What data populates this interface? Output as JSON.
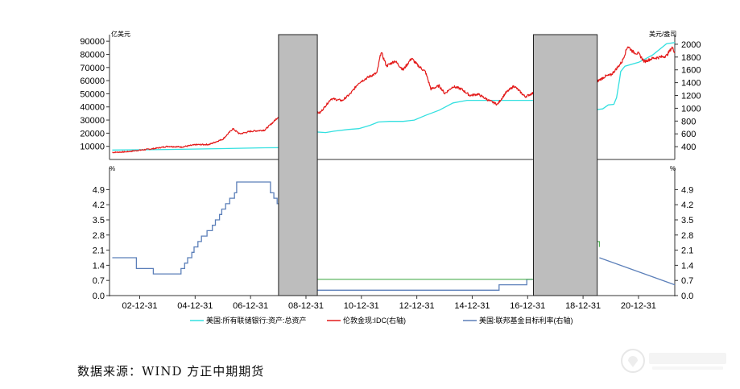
{
  "chart_data": {
    "type": "line",
    "x_ticks": [
      "02-12-31",
      "04-12-31",
      "06-12-31",
      "08-12-31",
      "10-12-31",
      "12-12-31",
      "14-12-31",
      "16-12-31",
      "18-12-31",
      "20-12-31"
    ],
    "top_panel": {
      "left_unit": "亿美元",
      "right_unit": "美元/盎司",
      "left_ticks": [
        "90000",
        "80000",
        "70000",
        "60000",
        "50000",
        "40000",
        "30000",
        "20000",
        "10000"
      ],
      "right_ticks": [
        "2000",
        "1800",
        "1600",
        "1400",
        "1200",
        "1000",
        "800",
        "600",
        "400"
      ],
      "ylim_left": [
        0,
        95000
      ],
      "ylim_right": [
        200,
        2150
      ],
      "series": [
        {
          "name": "美国:所有联储银行:资产:总资产",
          "axis": "left",
          "color": "#33e0e0",
          "points": [
            [
              2002.0,
              7200
            ],
            [
              2004.0,
              7600
            ],
            [
              2006.0,
              8300
            ],
            [
              2007.5,
              8900
            ],
            [
              2008.7,
              9100
            ],
            [
              2008.75,
              12500
            ],
            [
              2008.85,
              17500
            ],
            [
              2008.95,
              22000
            ],
            [
              2009.3,
              21000
            ],
            [
              2009.7,
              20500
            ],
            [
              2010.0,
              21500
            ],
            [
              2010.5,
              22800
            ],
            [
              2010.9,
              23500
            ],
            [
              2011.3,
              26000
            ],
            [
              2011.6,
              28500
            ],
            [
              2012.0,
              29000
            ],
            [
              2012.5,
              29000
            ],
            [
              2012.9,
              30000
            ],
            [
              2013.3,
              33500
            ],
            [
              2013.8,
              37500
            ],
            [
              2014.3,
              43000
            ],
            [
              2014.8,
              45000
            ],
            [
              2015.5,
              45000
            ],
            [
              2016.5,
              45000
            ],
            [
              2017.5,
              45000
            ],
            [
              2017.9,
              44500
            ],
            [
              2018.5,
              43000
            ],
            [
              2019.0,
              40500
            ],
            [
              2019.5,
              38000
            ],
            [
              2019.7,
              38500
            ],
            [
              2019.9,
              41500
            ],
            [
              2020.1,
              42000
            ],
            [
              2020.2,
              47000
            ],
            [
              2020.3,
              60000
            ],
            [
              2020.35,
              67000
            ],
            [
              2020.5,
              71000
            ],
            [
              2021.0,
              74000
            ],
            [
              2021.5,
              79500
            ],
            [
              2022.0,
              88000
            ],
            [
              2022.3,
              89000
            ]
          ]
        },
        {
          "name": "伦敦金现:IDC(右轴)",
          "axis": "right",
          "color": "#e31a1a",
          "points": [
            [
              2002.0,
              310
            ],
            [
              2002.5,
              320
            ],
            [
              2003.0,
              345
            ],
            [
              2003.5,
              370
            ],
            [
              2004.0,
              405
            ],
            [
              2004.5,
              395
            ],
            [
              2005.0,
              430
            ],
            [
              2005.5,
              435
            ],
            [
              2006.0,
              520
            ],
            [
              2006.35,
              680
            ],
            [
              2006.6,
              600
            ],
            [
              2007.0,
              640
            ],
            [
              2007.5,
              660
            ],
            [
              2007.8,
              780
            ],
            [
              2008.2,
              960
            ],
            [
              2008.4,
              880
            ],
            [
              2008.6,
              900
            ],
            [
              2008.8,
              720
            ],
            [
              2009.1,
              930
            ],
            [
              2009.5,
              930
            ],
            [
              2009.9,
              1150
            ],
            [
              2010.3,
              1120
            ],
            [
              2010.6,
              1230
            ],
            [
              2010.9,
              1400
            ],
            [
              2011.3,
              1500
            ],
            [
              2011.55,
              1550
            ],
            [
              2011.7,
              1880
            ],
            [
              2011.9,
              1660
            ],
            [
              2012.2,
              1740
            ],
            [
              2012.5,
              1600
            ],
            [
              2012.8,
              1780
            ],
            [
              2013.0,
              1680
            ],
            [
              2013.3,
              1570
            ],
            [
              2013.5,
              1300
            ],
            [
              2013.8,
              1350
            ],
            [
              2014.0,
              1230
            ],
            [
              2014.3,
              1340
            ],
            [
              2014.6,
              1300
            ],
            [
              2014.9,
              1200
            ],
            [
              2015.2,
              1220
            ],
            [
              2015.6,
              1120
            ],
            [
              2015.9,
              1060
            ],
            [
              2016.2,
              1240
            ],
            [
              2016.5,
              1350
            ],
            [
              2016.9,
              1180
            ],
            [
              2017.3,
              1260
            ],
            [
              2017.7,
              1290
            ],
            [
              2018.0,
              1320
            ],
            [
              2018.3,
              1330
            ],
            [
              2018.6,
              1240
            ],
            [
              2018.9,
              1200
            ],
            [
              2019.2,
              1300
            ],
            [
              2019.5,
              1420
            ],
            [
              2019.8,
              1500
            ],
            [
              2020.0,
              1520
            ],
            [
              2020.2,
              1620
            ],
            [
              2020.4,
              1730
            ],
            [
              2020.6,
              1970
            ],
            [
              2020.8,
              1880
            ],
            [
              2021.0,
              1850
            ],
            [
              2021.2,
              1730
            ],
            [
              2021.5,
              1780
            ],
            [
              2021.8,
              1800
            ],
            [
              2022.0,
              1820
            ],
            [
              2022.2,
              1950
            ],
            [
              2022.3,
              1880
            ]
          ]
        }
      ]
    },
    "bottom_panel": {
      "left_unit": "%",
      "right_unit": "%",
      "ticks": [
        "4.9",
        "4.2",
        "3.5",
        "2.8",
        "2.1",
        "1.4",
        "0.7",
        "0.0"
      ],
      "ylim": [
        0,
        5.5
      ],
      "series": [
        {
          "name": "美国:联邦基金目标利率(右轴)",
          "color": "#5b7fb9",
          "steps": [
            [
              2002.0,
              1.75
            ],
            [
              2002.87,
              1.25
            ],
            [
              2003.48,
              1.0
            ],
            [
              2004.48,
              1.25
            ],
            [
              2004.61,
              1.5
            ],
            [
              2004.72,
              1.75
            ],
            [
              2004.87,
              2.0
            ],
            [
              2004.95,
              2.25
            ],
            [
              2005.09,
              2.5
            ],
            [
              2005.22,
              2.75
            ],
            [
              2005.42,
              3.0
            ],
            [
              2005.61,
              3.25
            ],
            [
              2005.72,
              3.5
            ],
            [
              2005.87,
              3.75
            ],
            [
              2005.95,
              4.0
            ],
            [
              2006.09,
              4.25
            ],
            [
              2006.24,
              4.5
            ],
            [
              2006.41,
              4.75
            ],
            [
              2006.49,
              5.25
            ],
            [
              2007.71,
              4.75
            ],
            [
              2007.83,
              4.5
            ],
            [
              2007.95,
              4.25
            ],
            [
              2008.06,
              3.5
            ],
            [
              2008.08,
              3.0
            ],
            [
              2008.22,
              2.25
            ],
            [
              2008.33,
              2.0
            ],
            [
              2008.77,
              1.5
            ],
            [
              2008.83,
              1.0
            ],
            [
              2008.96,
              0.25
            ],
            [
              2015.96,
              0.5
            ],
            [
              2016.96,
              0.75
            ],
            [
              2017.21,
              1.0
            ],
            [
              2017.46,
              1.25
            ]
          ],
          "continue": [
            [
              2019.58,
              1.75
            ],
            [
              2022.3,
              0.5
            ]
          ]
        },
        {
          "name": "green_segment",
          "color": "#4caf50",
          "steps": [
            [
              2008.96,
              0.75
            ],
            [
              2017.96,
              1.5
            ],
            [
              2018.21,
              1.75
            ],
            [
              2018.46,
              2.0
            ],
            [
              2018.71,
              2.25
            ],
            [
              2018.96,
              2.5
            ],
            [
              2019.58,
              2.25
            ]
          ]
        }
      ]
    },
    "recessions": [
      [
        2008.0,
        2009.4
      ],
      [
        2017.2,
        2019.5
      ]
    ],
    "legend": [
      {
        "label": "美国:所有联储银行:资产:总资产",
        "color": "#33e0e0"
      },
      {
        "label": "伦敦金现:IDC(右轴)",
        "color": "#e31a1a"
      },
      {
        "label": "美国:联邦基金目标利率(右轴)",
        "color": "#5b7fb9"
      }
    ]
  },
  "footer": {
    "source": "数据来源：WIND  方正中期期货"
  },
  "watermark_icon": "logo-watermark-icon"
}
